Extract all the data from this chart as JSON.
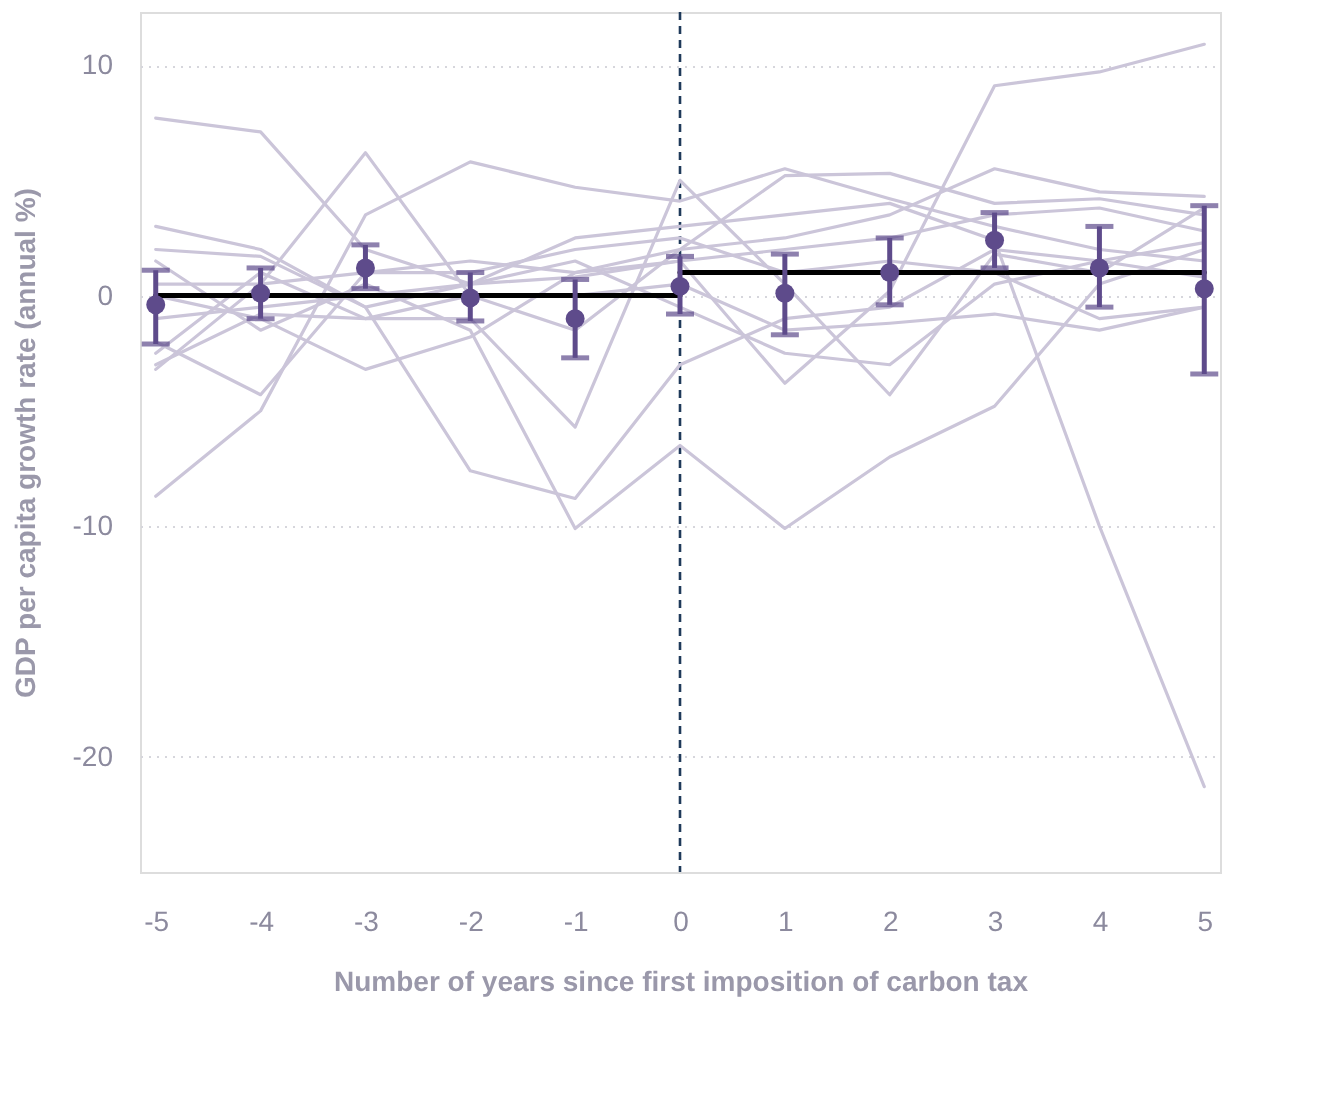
{
  "chart_data": {
    "type": "line",
    "xlabel": "Number of years since first imposition of carbon tax",
    "ylabel": "GDP per capita growth rate (annual %)",
    "x": [
      -5,
      -4,
      -3,
      -2,
      -1,
      0,
      1,
      2,
      3,
      4,
      5
    ],
    "xlim": [
      -5.15,
      5.15
    ],
    "xticks": [
      -5,
      -4,
      -3,
      -2,
      -1,
      0,
      1,
      2,
      3,
      4,
      5
    ],
    "ylim": [
      -25,
      12.3
    ],
    "yticks": [
      -20,
      -10,
      0,
      10
    ],
    "grid": "y",
    "line_style": "solid",
    "ref_lines": [
      {
        "axis": "x",
        "value": 0,
        "color": "#1f3a5a",
        "line_style": "dashed"
      }
    ],
    "series": [
      {
        "color": "#cbc5d9",
        "values": [
          7.7,
          7.1,
          2.0,
          0.5,
          0.8,
          1.5,
          2.0,
          2.5,
          3.5,
          3.8,
          2.8
        ]
      },
      {
        "color": "#cbc5d9",
        "values": [
          -8.7,
          -5.0,
          3.5,
          5.8,
          4.7,
          4.1,
          5.5,
          4.2,
          3.0,
          2.0,
          1.5
        ]
      },
      {
        "color": "#cbc5d9",
        "values": [
          -3.2,
          0.5,
          6.2,
          0.0,
          -1.5,
          2.0,
          5.2,
          5.3,
          4.0,
          4.2,
          3.5
        ]
      },
      {
        "color": "#cbc5d9",
        "values": [
          3.0,
          2.0,
          -0.5,
          -7.6,
          -8.8,
          -3.0,
          -1.0,
          -0.5,
          2.0,
          1.5,
          0.8
        ]
      },
      {
        "color": "#cbc5d9",
        "values": [
          1.5,
          -1.5,
          0.5,
          -1.5,
          -10.1,
          -6.5,
          -10.1,
          -7.0,
          -4.8,
          0.5,
          2.0
        ]
      },
      {
        "color": "#cbc5d9",
        "values": [
          -2.5,
          1.0,
          -1.0,
          -1.0,
          -5.7,
          5.0,
          0.5,
          -4.3,
          1.8,
          1.0,
          3.8
        ]
      },
      {
        "color": "#cbc5d9",
        "values": [
          0.0,
          -1.0,
          -3.2,
          -1.8,
          1.0,
          1.5,
          -3.8,
          0.2,
          9.1,
          9.7,
          10.9
        ]
      },
      {
        "color": "#cbc5d9",
        "values": [
          2.0,
          1.7,
          -0.5,
          0.5,
          2.5,
          3.0,
          3.5,
          4.0,
          2.4,
          -10.0,
          -21.3
        ]
      },
      {
        "color": "#cbc5d9",
        "values": [
          -2.0,
          -4.3,
          1.0,
          1.5,
          1.0,
          2.0,
          2.5,
          3.5,
          5.5,
          4.5,
          4.3
        ]
      },
      {
        "color": "#cbc5d9",
        "values": [
          -1.0,
          -0.5,
          0.0,
          0.5,
          1.5,
          -0.5,
          -2.5,
          -3.0,
          0.5,
          1.5,
          2.3
        ]
      },
      {
        "color": "#cbc5d9",
        "values": [
          0.5,
          0.5,
          1.0,
          1.0,
          2.0,
          2.5,
          1.0,
          1.5,
          1.0,
          -1.0,
          -0.5
        ]
      },
      {
        "color": "#cbc5d9",
        "values": [
          -3.0,
          -0.8,
          -1.0,
          0.0,
          0.0,
          0.5,
          -1.5,
          -1.2,
          -0.8,
          -1.5,
          -0.5
        ]
      },
      {
        "type": "line",
        "color": "#000000",
        "x": [
          -5,
          0
        ],
        "values": [
          0.0,
          0.0
        ]
      },
      {
        "type": "line",
        "color": "#000000",
        "x": [
          0,
          5
        ],
        "values": [
          1.0,
          1.0
        ]
      },
      {
        "type": "scatter",
        "marker": "circle",
        "color": "#5e4b8b",
        "values": [
          -0.4,
          0.1,
          1.2,
          -0.1,
          -1.0,
          0.4,
          0.1,
          1.0,
          2.4,
          1.2,
          0.3
        ],
        "errors": [
          [
            -2.1,
            1.1
          ],
          [
            -1.0,
            1.2
          ],
          [
            0.3,
            2.2
          ],
          [
            -1.1,
            1.0
          ],
          [
            -2.7,
            0.7
          ],
          [
            -0.8,
            1.7
          ],
          [
            -1.7,
            1.8
          ],
          [
            -0.4,
            2.5
          ],
          [
            1.2,
            3.6
          ],
          [
            -0.5,
            3.0
          ],
          [
            -3.4,
            3.9
          ]
        ]
      }
    ]
  }
}
